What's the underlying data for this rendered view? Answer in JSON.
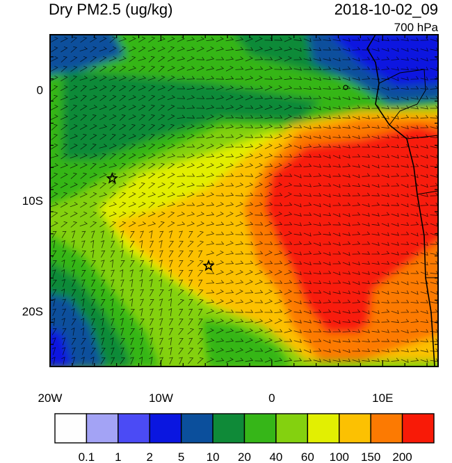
{
  "header": {
    "field_title": "Dry PM2.5 (ug/kg)",
    "timestamp": "2018-10-02_09",
    "level": "700 hPa"
  },
  "map": {
    "lon_range": [
      -20,
      15
    ],
    "lat_range": [
      -25,
      5
    ],
    "x_ticks": [
      {
        "lon": -20,
        "label": "20W"
      },
      {
        "lon": -10,
        "label": "10W"
      },
      {
        "lon": 0,
        "label": "0"
      },
      {
        "lon": 10,
        "label": "10E"
      }
    ],
    "y_ticks": [
      {
        "lat": 0,
        "label": "0"
      },
      {
        "lat": -10,
        "label": "10S"
      },
      {
        "lat": -20,
        "label": "20S"
      }
    ],
    "markers": [
      {
        "type": "star",
        "lon": -14.4,
        "lat": -8.0
      },
      {
        "type": "star",
        "lon": -5.7,
        "lat": -15.9
      }
    ],
    "wind_barbs": true
  },
  "colorbar": {
    "colors": [
      "#fefefe",
      "#a3a3f5",
      "#4b4bf5",
      "#0a16e0",
      "#0b4f9c",
      "#0f8a38",
      "#36b618",
      "#84d10f",
      "#e2ef02",
      "#fcc102",
      "#fc7a02",
      "#f81a07"
    ],
    "labels": [
      "0.1",
      "1",
      "2",
      "5",
      "10",
      "20",
      "40",
      "60",
      "100",
      "150",
      "200"
    ]
  }
}
